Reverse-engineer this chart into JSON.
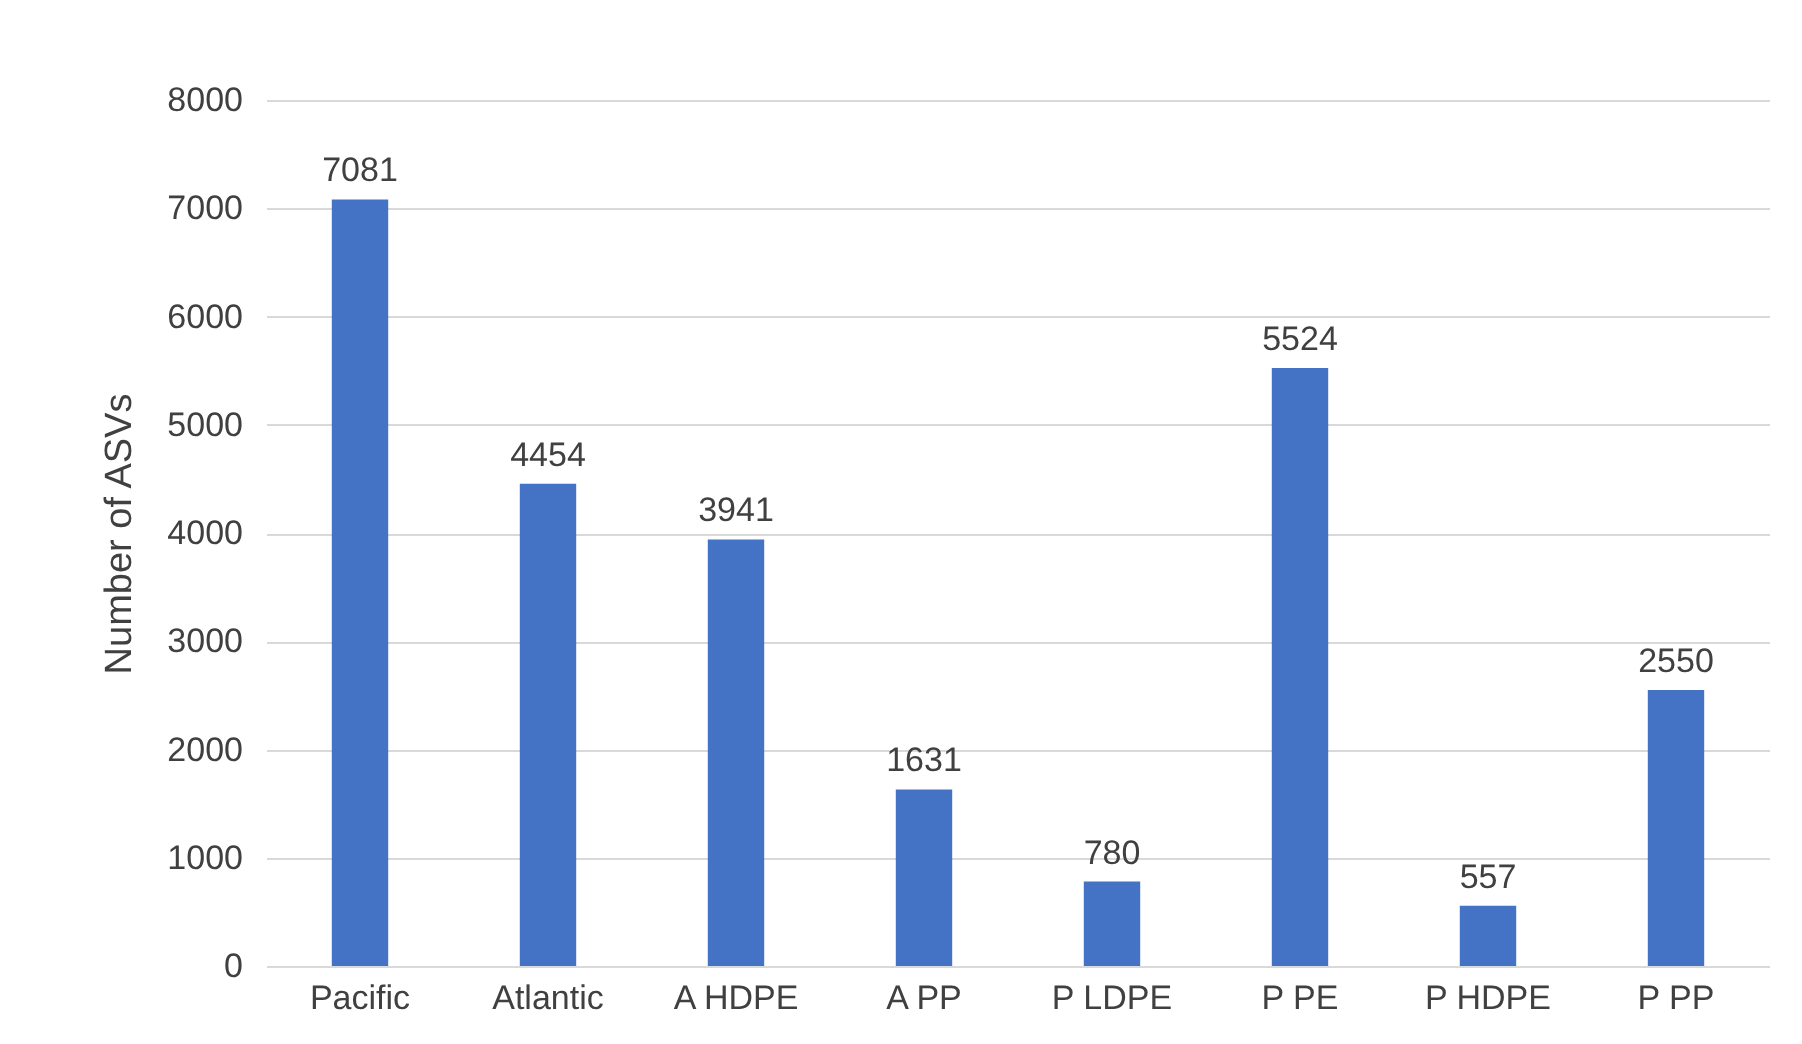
{
  "chart_data": {
    "type": "bar",
    "ylabel": "Number of ASVs",
    "categories": [
      "Pacific",
      "Atlantic",
      "A  HDPE",
      "A  PP",
      "P  LDPE",
      "P  PE",
      "P  HDPE",
      "P  PP"
    ],
    "values": [
      7081,
      4454,
      3941,
      1631,
      780,
      5524,
      557,
      2550
    ],
    "color": "#4472c4",
    "ylim": [
      0,
      8000
    ],
    "yticks": [
      0,
      1000,
      2000,
      3000,
      4000,
      5000,
      6000,
      7000,
      8000
    ],
    "grid": "y",
    "data_labels": true
  }
}
